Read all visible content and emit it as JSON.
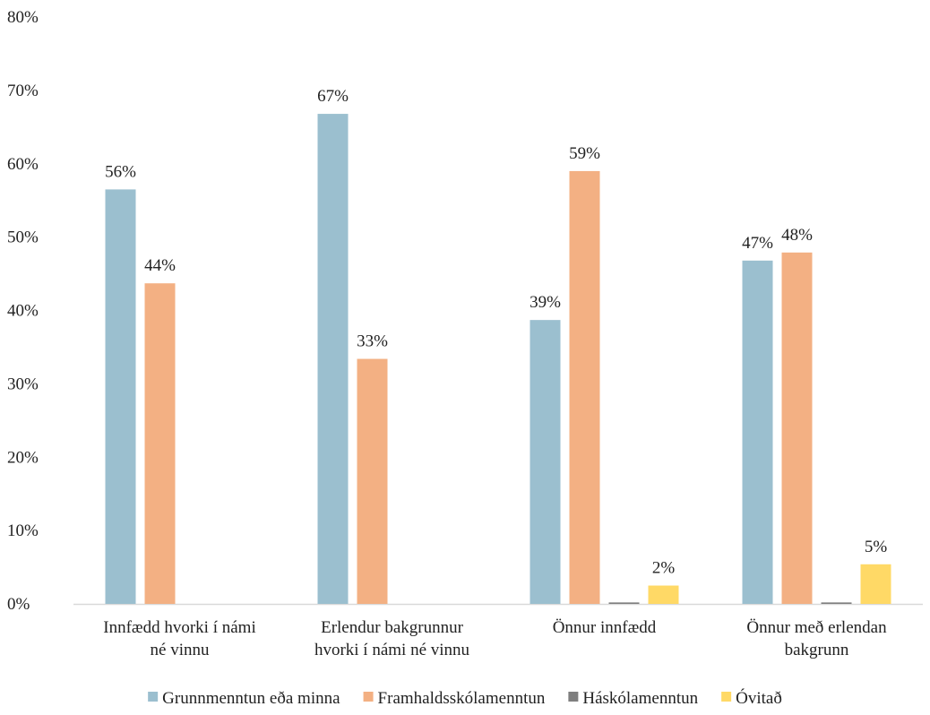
{
  "chart_data": {
    "type": "bar",
    "title": "",
    "xlabel": "",
    "ylabel": "",
    "ylim": [
      0,
      80
    ],
    "yticks": [
      0,
      10,
      20,
      30,
      40,
      50,
      60,
      70,
      80
    ],
    "y_tick_suffix": "%",
    "grid": false,
    "legend_position": "bottom",
    "categories": [
      [
        "Innfædd hvorki í námi",
        "né vinnu"
      ],
      [
        "Erlendur bakgrunnur",
        "hvorki í námi né vinnu"
      ],
      [
        "Önnur innfædd"
      ],
      [
        "Önnur með erlendan",
        "bakgrunn"
      ]
    ],
    "series": [
      {
        "name": "Grunnmenntun eða minna",
        "color": "#9bbfcf",
        "values": [
          56.5,
          66.8,
          38.7,
          46.8
        ],
        "labels": [
          "56%",
          "67%",
          "39%",
          "47%"
        ]
      },
      {
        "name": "Framhaldsskólamenntun",
        "color": "#f3b083",
        "values": [
          43.7,
          33.4,
          59.0,
          47.9
        ],
        "labels": [
          "44%",
          "33%",
          "59%",
          "48%"
        ]
      },
      {
        "name": "Háskólamenntun",
        "color": "#7f7f7f",
        "values": [
          0,
          0,
          0.2,
          0.2
        ],
        "labels": [
          null,
          null,
          null,
          null
        ]
      },
      {
        "name": "Óvitað",
        "color": "#ffd966",
        "values": [
          0,
          0,
          2.5,
          5.4
        ],
        "labels": [
          null,
          null,
          "2%",
          "5%"
        ]
      }
    ]
  }
}
